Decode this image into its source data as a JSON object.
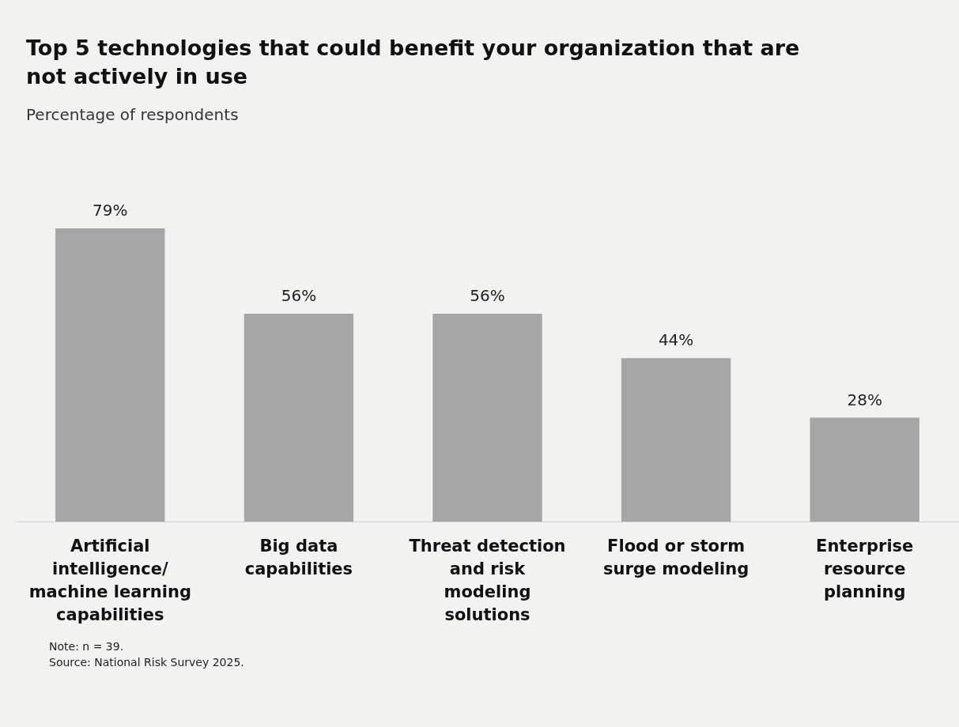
{
  "chart_data": {
    "type": "bar",
    "title": "Top 5 technologies that could benefit your organization that are not actively in use",
    "subtitle": "Percentage of respondents",
    "categories": [
      "Artificial intelligence/ machine learning capabilities",
      "Big data capabilities",
      "Threat detection and risk modeling solutions",
      "Flood or storm surge modeling",
      "Enterprise resource planning"
    ],
    "values": [
      79,
      56,
      56,
      44,
      28
    ],
    "value_labels": [
      "79%",
      "56%",
      "56%",
      "44%",
      "28%"
    ],
    "color": "#a6a6a6",
    "annotations": [
      "Note: n = 39.",
      "Source: National Risk Survey 2025."
    ]
  }
}
